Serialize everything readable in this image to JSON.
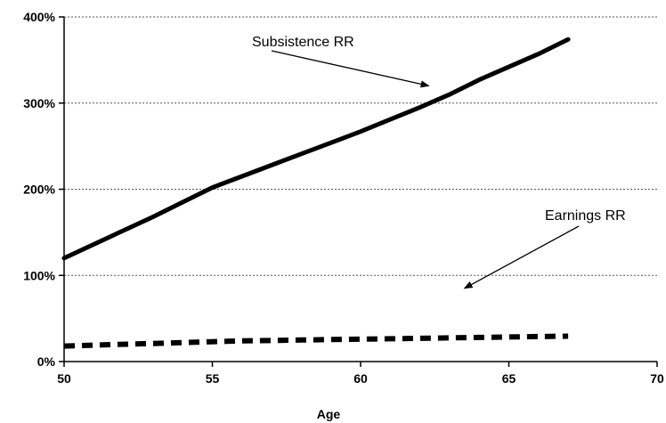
{
  "chart_data": {
    "type": "line",
    "title": "",
    "xlabel": "Age",
    "ylabel": "",
    "xlim": [
      50,
      70
    ],
    "ylim": [
      0,
      400
    ],
    "x_ticks": [
      50,
      55,
      60,
      65,
      70
    ],
    "x_tick_labels": [
      "50",
      "55",
      "60",
      "65",
      "70"
    ],
    "y_ticks": [
      0,
      100,
      200,
      300,
      400
    ],
    "y_tick_labels": [
      "0%",
      "100%",
      "200%",
      "300%",
      "400%"
    ],
    "grid": "horizontal dotted",
    "legend": "none",
    "series": [
      {
        "name": "Subsistence RR",
        "style": "solid",
        "color": "#000000",
        "x": [
          50,
          51,
          52,
          53,
          54,
          55,
          56,
          57,
          58,
          59,
          60,
          61,
          62,
          63,
          64,
          65,
          66,
          67
        ],
        "values": [
          120,
          136,
          152,
          168,
          185,
          202,
          215,
          228,
          241,
          254,
          267,
          281,
          295,
          310,
          327,
          342,
          357,
          374
        ]
      },
      {
        "name": "Earnings RR",
        "style": "dashed",
        "color": "#000000",
        "x": [
          50,
          51,
          52,
          53,
          54,
          55,
          56,
          57,
          58,
          59,
          60,
          61,
          62,
          63,
          64,
          65,
          66,
          67
        ],
        "values": [
          18,
          19,
          20,
          21,
          22,
          23,
          24,
          24.5,
          25,
          25.5,
          26,
          26.5,
          27,
          27.5,
          28,
          28.5,
          29,
          29.5
        ]
      }
    ],
    "annotations": [
      {
        "text": "Subsistence RR",
        "arrow_to": [
          62.3,
          320
        ]
      },
      {
        "text": "Earnings RR",
        "arrow_to": [
          63.5,
          85
        ]
      }
    ]
  }
}
